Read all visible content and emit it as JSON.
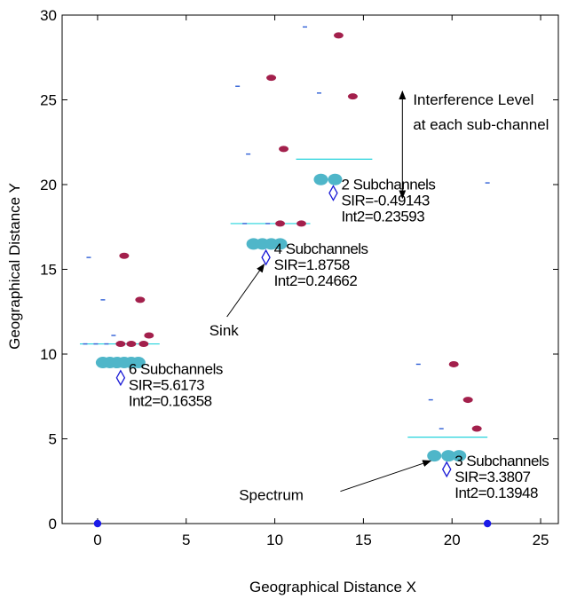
{
  "chart_data": {
    "type": "scatter",
    "title": "",
    "xlabel": "Geographical Distance X",
    "ylabel": "Geographical Distance Y",
    "xlim": [
      -2,
      26
    ],
    "ylim": [
      0,
      30
    ],
    "xticks": [
      0,
      5,
      10,
      15,
      20,
      25
    ],
    "yticks": [
      0,
      5,
      10,
      15,
      20,
      25,
      30
    ],
    "grid": false,
    "colors": {
      "subchannel": "#4fb6c9",
      "interferer": "#a3204c",
      "interference_line": "#24d3dc",
      "interferer_tick": "#2f5fd6",
      "node_marker": "#1a1ad6",
      "sink_point": "#1a1ae8"
    },
    "clusters": [
      {
        "name": "cluster-6",
        "sink": [
          1.3,
          8.6
        ],
        "subchannel_dots": [
          [
            0.3,
            9.5
          ],
          [
            0.7,
            9.5
          ],
          [
            1.1,
            9.5
          ],
          [
            1.5,
            9.5
          ],
          [
            1.9,
            9.5
          ],
          [
            2.3,
            9.5
          ]
        ],
        "interference_line": {
          "x": [
            -1,
            3.5
          ],
          "y": 10.6
        },
        "label": [
          "6  Subchannels",
          "SIR=5.6173",
          "Int2=0.16358"
        ]
      },
      {
        "name": "cluster-4",
        "sink": [
          9.5,
          15.7
        ],
        "subchannel_dots": [
          [
            8.8,
            16.5
          ],
          [
            9.3,
            16.5
          ],
          [
            9.8,
            16.5
          ],
          [
            10.3,
            16.5
          ]
        ],
        "interference_line": {
          "x": [
            7.5,
            12
          ],
          "y": 17.7
        },
        "label": [
          "4  Subchannels",
          "SIR=1.8758",
          "Int2=0.24662"
        ]
      },
      {
        "name": "cluster-2",
        "sink": [
          13.3,
          19.5
        ],
        "subchannel_dots": [
          [
            12.6,
            20.3
          ],
          [
            13.4,
            20.3
          ]
        ],
        "interference_line": {
          "x": [
            11.2,
            15.5
          ],
          "y": 21.5
        },
        "label": [
          "2  Subchannels",
          "SIR=-0.49143",
          "Int2=0.23593"
        ]
      },
      {
        "name": "cluster-3",
        "sink": [
          19.7,
          3.2
        ],
        "subchannel_dots": [
          [
            19.0,
            4.0
          ],
          [
            19.8,
            4.0
          ],
          [
            20.4,
            4.0
          ]
        ],
        "interference_line": {
          "x": [
            17.5,
            22
          ],
          "y": 5.1
        },
        "label": [
          "3  Subchannels",
          "SIR=3.3807",
          "Int2=0.13948"
        ]
      }
    ],
    "interferers": [
      [
        1.5,
        15.8
      ],
      [
        2.4,
        13.2
      ],
      [
        2.9,
        11.1
      ],
      [
        1.3,
        10.6
      ],
      [
        1.9,
        10.6
      ],
      [
        2.6,
        10.6
      ],
      [
        9.8,
        26.3
      ],
      [
        10.5,
        22.1
      ],
      [
        10.3,
        17.7
      ],
      [
        11.5,
        17.7
      ],
      [
        13.6,
        28.8
      ],
      [
        14.4,
        25.2
      ],
      [
        20.1,
        9.4
      ],
      [
        20.9,
        7.3
      ],
      [
        21.4,
        5.6
      ]
    ],
    "interferer_ticks": [
      [
        -0.5,
        15.7
      ],
      [
        0.3,
        13.2
      ],
      [
        0.9,
        11.1
      ],
      [
        -0.7,
        10.6
      ],
      [
        -0.1,
        10.6
      ],
      [
        0.5,
        10.6
      ],
      [
        7.9,
        25.8
      ],
      [
        8.5,
        21.8
      ],
      [
        8.3,
        17.7
      ],
      [
        9.6,
        17.7
      ],
      [
        11.7,
        29.3
      ],
      [
        12.5,
        25.4
      ],
      [
        22.0,
        20.1
      ],
      [
        18.1,
        9.4
      ],
      [
        18.8,
        7.3
      ],
      [
        19.4,
        5.6
      ]
    ],
    "node_points": [
      [
        0,
        0
      ],
      [
        22,
        0
      ]
    ],
    "annotations": {
      "interference": {
        "lines": [
          "Interference Level",
          "at each sub-channel"
        ],
        "arrow_x": 17.2,
        "arrow_y": [
          19.2,
          25.5
        ]
      },
      "sink": {
        "text": "Sink",
        "text_at": [
          6.3,
          11.1
        ],
        "arrow_from": [
          7.3,
          12.2
        ],
        "arrow_to": [
          9.4,
          15.3
        ]
      },
      "spectrum": {
        "text": "Spectrum",
        "text_at": [
          9.8,
          1.4
        ],
        "arrow_from": [
          13.7,
          1.9
        ],
        "arrow_to": [
          18.8,
          3.7
        ]
      }
    }
  }
}
